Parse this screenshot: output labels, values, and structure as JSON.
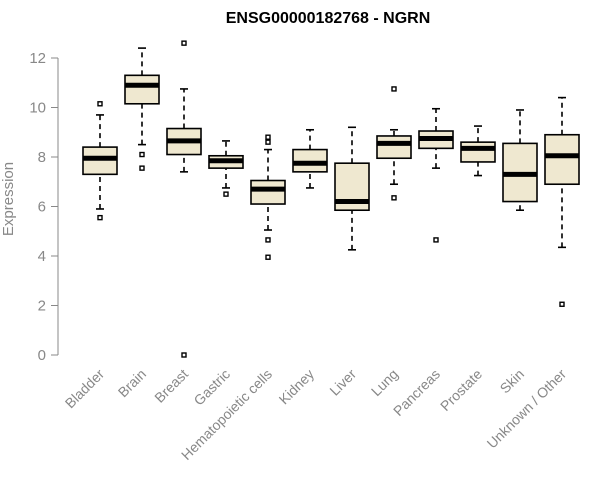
{
  "chart_data": {
    "type": "box",
    "title": "ENSG00000182768 - NGRN",
    "ylabel": "Expression",
    "xlabel": "",
    "ylim": [
      0,
      12.6
    ],
    "yticks": [
      0,
      2,
      4,
      6,
      8,
      10,
      12
    ],
    "box_fill": "#efe8d0",
    "categories": [
      "Bladder",
      "Brain",
      "Breast",
      "Gastric",
      "Hematopoietic cells",
      "Kidney",
      "Liver",
      "Lung",
      "Pancreas",
      "Prostate",
      "Skin",
      "Unknown / Other"
    ],
    "boxes": [
      {
        "whisker_low": 5.9,
        "q1": 7.3,
        "median": 7.95,
        "q3": 8.4,
        "whisker_high": 9.7,
        "outliers": [
          5.55,
          10.15
        ]
      },
      {
        "whisker_low": 8.5,
        "q1": 10.15,
        "median": 10.9,
        "q3": 11.3,
        "whisker_high": 12.4,
        "outliers": [
          7.55,
          8.1
        ]
      },
      {
        "whisker_low": 7.4,
        "q1": 8.1,
        "median": 8.65,
        "q3": 9.15,
        "whisker_high": 10.75,
        "outliers": [
          0.0,
          12.6
        ]
      },
      {
        "whisker_low": 6.75,
        "q1": 7.55,
        "median": 7.85,
        "q3": 8.05,
        "whisker_high": 8.65,
        "outliers": [
          6.5
        ]
      },
      {
        "whisker_low": 5.05,
        "q1": 6.1,
        "median": 6.7,
        "q3": 7.05,
        "whisker_high": 8.3,
        "outliers": [
          3.95,
          4.65,
          8.6,
          8.8
        ]
      },
      {
        "whisker_low": 6.75,
        "q1": 7.4,
        "median": 7.75,
        "q3": 8.3,
        "whisker_high": 9.1,
        "outliers": []
      },
      {
        "whisker_low": 4.25,
        "q1": 5.85,
        "median": 6.2,
        "q3": 7.75,
        "whisker_high": 9.2,
        "outliers": []
      },
      {
        "whisker_low": 6.9,
        "q1": 7.95,
        "median": 8.55,
        "q3": 8.85,
        "whisker_high": 9.1,
        "outliers": [
          6.35,
          10.75
        ]
      },
      {
        "whisker_low": 7.55,
        "q1": 8.35,
        "median": 8.75,
        "q3": 9.05,
        "whisker_high": 9.95,
        "outliers": [
          4.65
        ]
      },
      {
        "whisker_low": 7.25,
        "q1": 7.8,
        "median": 8.35,
        "q3": 8.6,
        "whisker_high": 9.25,
        "outliers": []
      },
      {
        "whisker_low": 5.85,
        "q1": 6.2,
        "median": 7.3,
        "q3": 8.55,
        "whisker_high": 9.9,
        "outliers": []
      },
      {
        "whisker_low": 4.35,
        "q1": 6.9,
        "median": 8.05,
        "q3": 8.9,
        "whisker_high": 10.4,
        "outliers": [
          2.05
        ]
      }
    ]
  }
}
